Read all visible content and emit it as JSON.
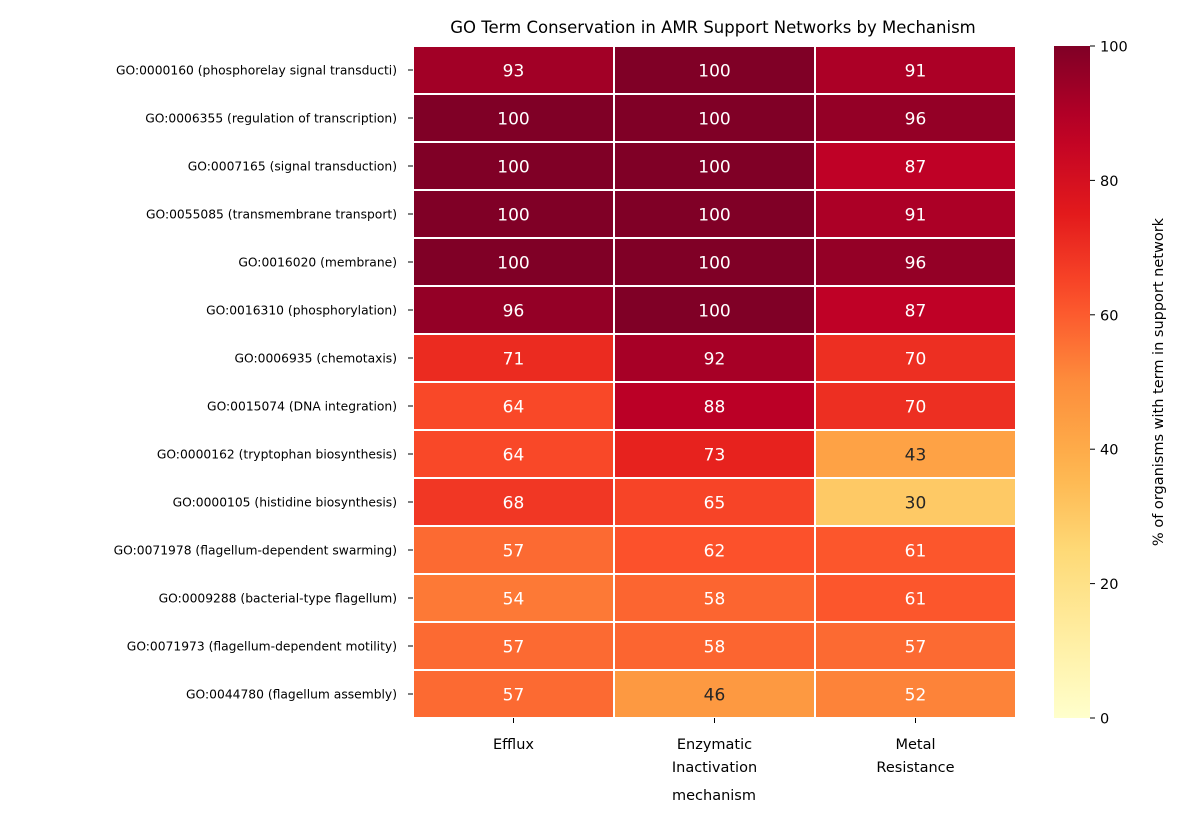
{
  "chart_data": {
    "type": "heatmap",
    "title": "GO Term Conservation in AMR Support Networks by Mechanism",
    "xlabel": "mechanism",
    "ylabel": "",
    "columns": [
      "Efflux",
      "Enzymatic\nInactivation",
      "Metal\nResistance"
    ],
    "rows": [
      "GO:0000160 (phosphorelay signal transducti)",
      "GO:0006355 (regulation of transcription)",
      "GO:0007165 (signal transduction)",
      "GO:0055085 (transmembrane transport)",
      "GO:0016020 (membrane)",
      "GO:0016310 (phosphorylation)",
      "GO:0006935 (chemotaxis)",
      "GO:0015074 (DNA integration)",
      "GO:0000162 (tryptophan biosynthesis)",
      "GO:0000105 (histidine biosynthesis)",
      "GO:0071978 (flagellum-dependent swarming)",
      "GO:0009288 (bacterial-type flagellum)",
      "GO:0071973 (flagellum-dependent motility)",
      "GO:0044780 (flagellum assembly)"
    ],
    "values": [
      [
        93,
        100,
        91
      ],
      [
        100,
        100,
        96
      ],
      [
        100,
        100,
        87
      ],
      [
        100,
        100,
        91
      ],
      [
        100,
        100,
        96
      ],
      [
        96,
        100,
        87
      ],
      [
        71,
        92,
        70
      ],
      [
        64,
        88,
        70
      ],
      [
        64,
        73,
        43
      ],
      [
        68,
        65,
        30
      ],
      [
        57,
        62,
        61
      ],
      [
        54,
        58,
        61
      ],
      [
        57,
        58,
        57
      ],
      [
        57,
        46,
        52
      ]
    ],
    "colormap": "YlOrRd",
    "vmin": 0,
    "vmax": 100,
    "colorbar": {
      "label": "% of organisms with term in support network",
      "ticks": [
        0,
        20,
        40,
        60,
        80,
        100
      ]
    },
    "annotations": true
  }
}
